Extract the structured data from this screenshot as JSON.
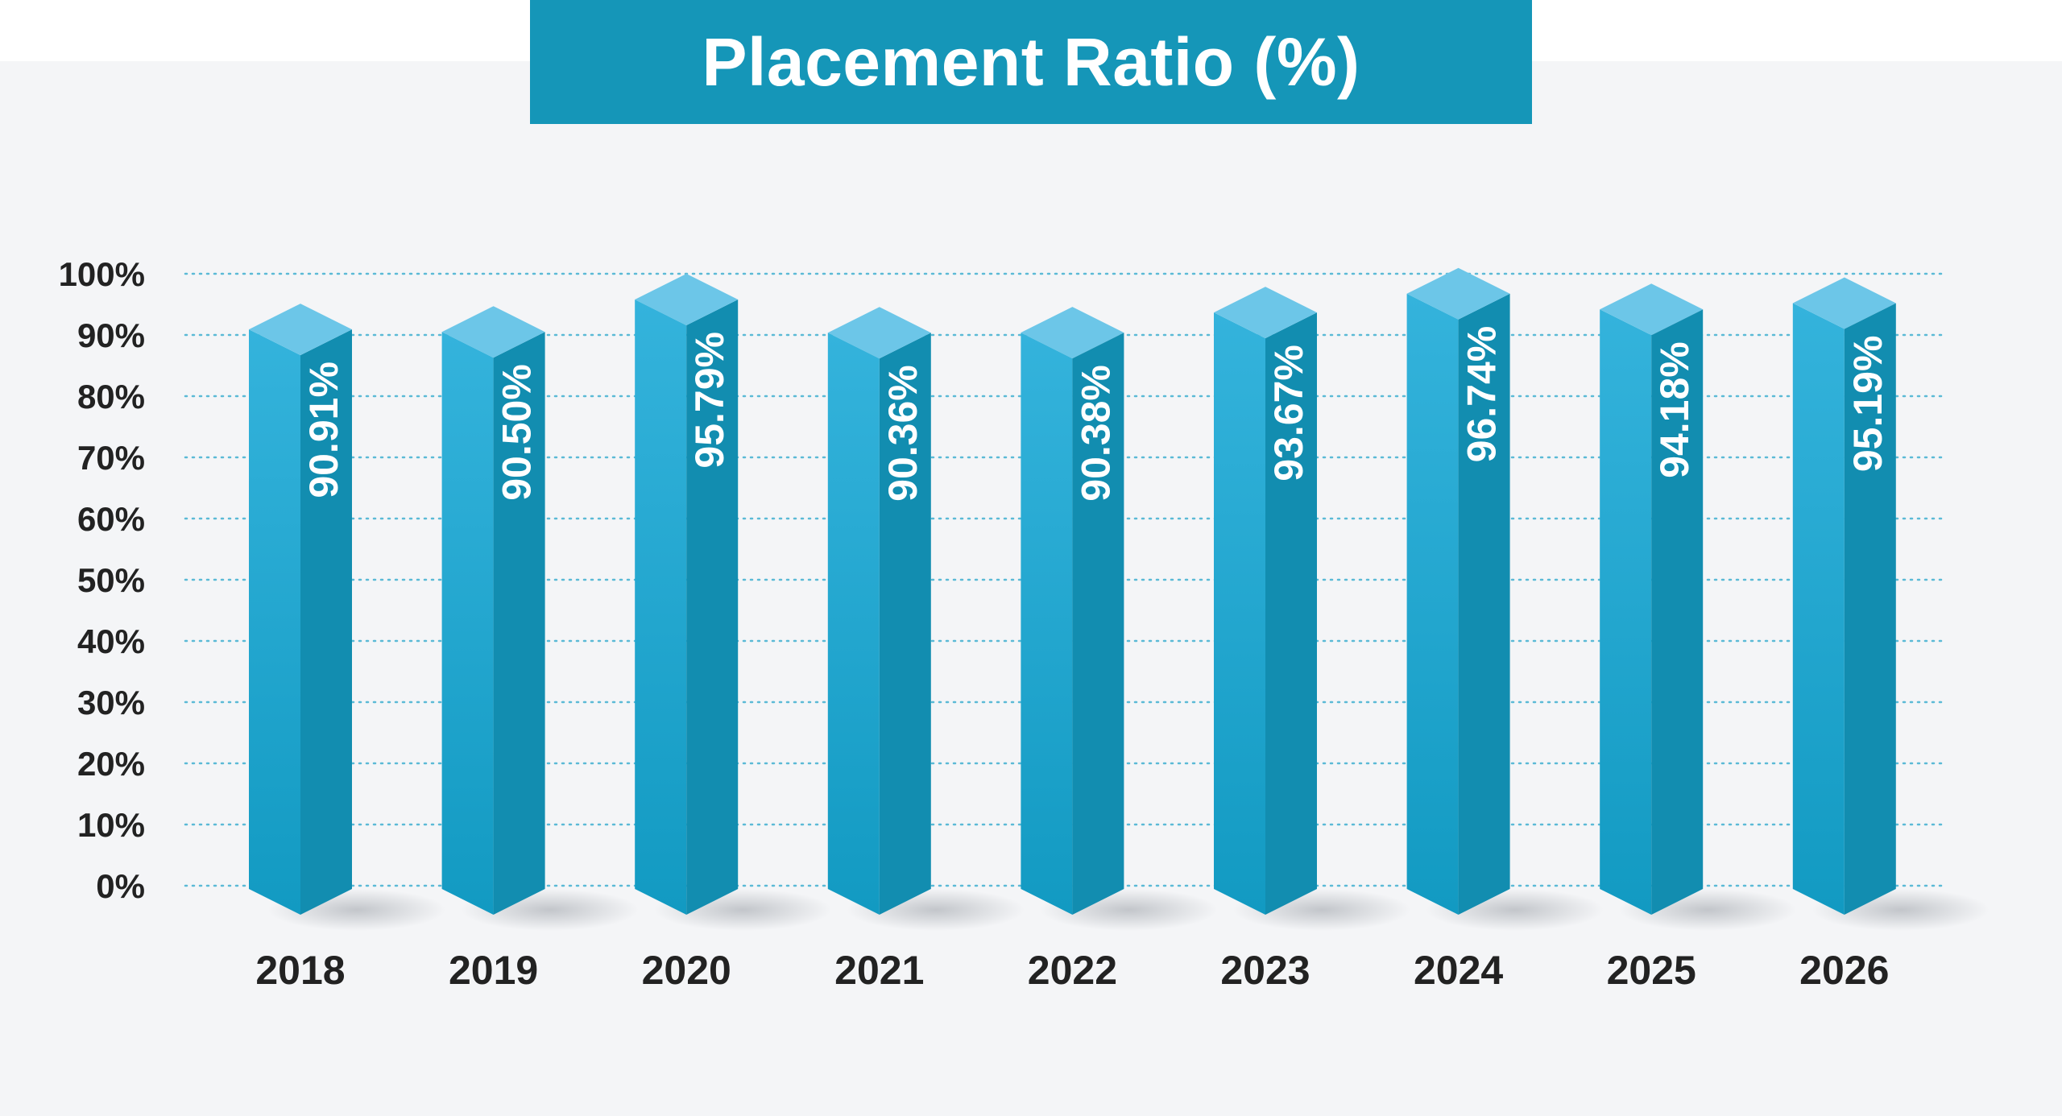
{
  "chart_data": {
    "type": "bar",
    "title": "Placement Ratio (%)",
    "xlabel": "",
    "ylabel": "",
    "categories": [
      "2018",
      "2019",
      "2020",
      "2021",
      "2022",
      "2023",
      "2024",
      "2025",
      "2026"
    ],
    "values": [
      90.91,
      90.5,
      95.79,
      90.36,
      90.38,
      93.67,
      96.74,
      94.18,
      95.19
    ],
    "value_labels": [
      "90.91%",
      "90.50%",
      "95.79%",
      "90.36%",
      "90.38%",
      "93.67%",
      "96.74%",
      "94.18%",
      "95.19%"
    ],
    "ylim": [
      0,
      100
    ],
    "yticks": [
      0,
      10,
      20,
      30,
      40,
      50,
      60,
      70,
      80,
      90,
      100
    ],
    "ytick_labels": [
      "0%",
      "10%",
      "20%",
      "30%",
      "40%",
      "50%",
      "60%",
      "70%",
      "80%",
      "90%",
      "100%"
    ],
    "grid": true,
    "grid_style": "dotted",
    "bar_style": "3d-isometric",
    "legend": "none"
  },
  "colors": {
    "title_banner": "#1596b8",
    "background": "#f4f5f7",
    "bar_top": "#6cc6e8",
    "bar_left_light": "#34b3dc",
    "bar_left_dark": "#129ac2",
    "bar_right": "#128db0",
    "grid": "#5bbad6",
    "text_dark": "#222222"
  }
}
